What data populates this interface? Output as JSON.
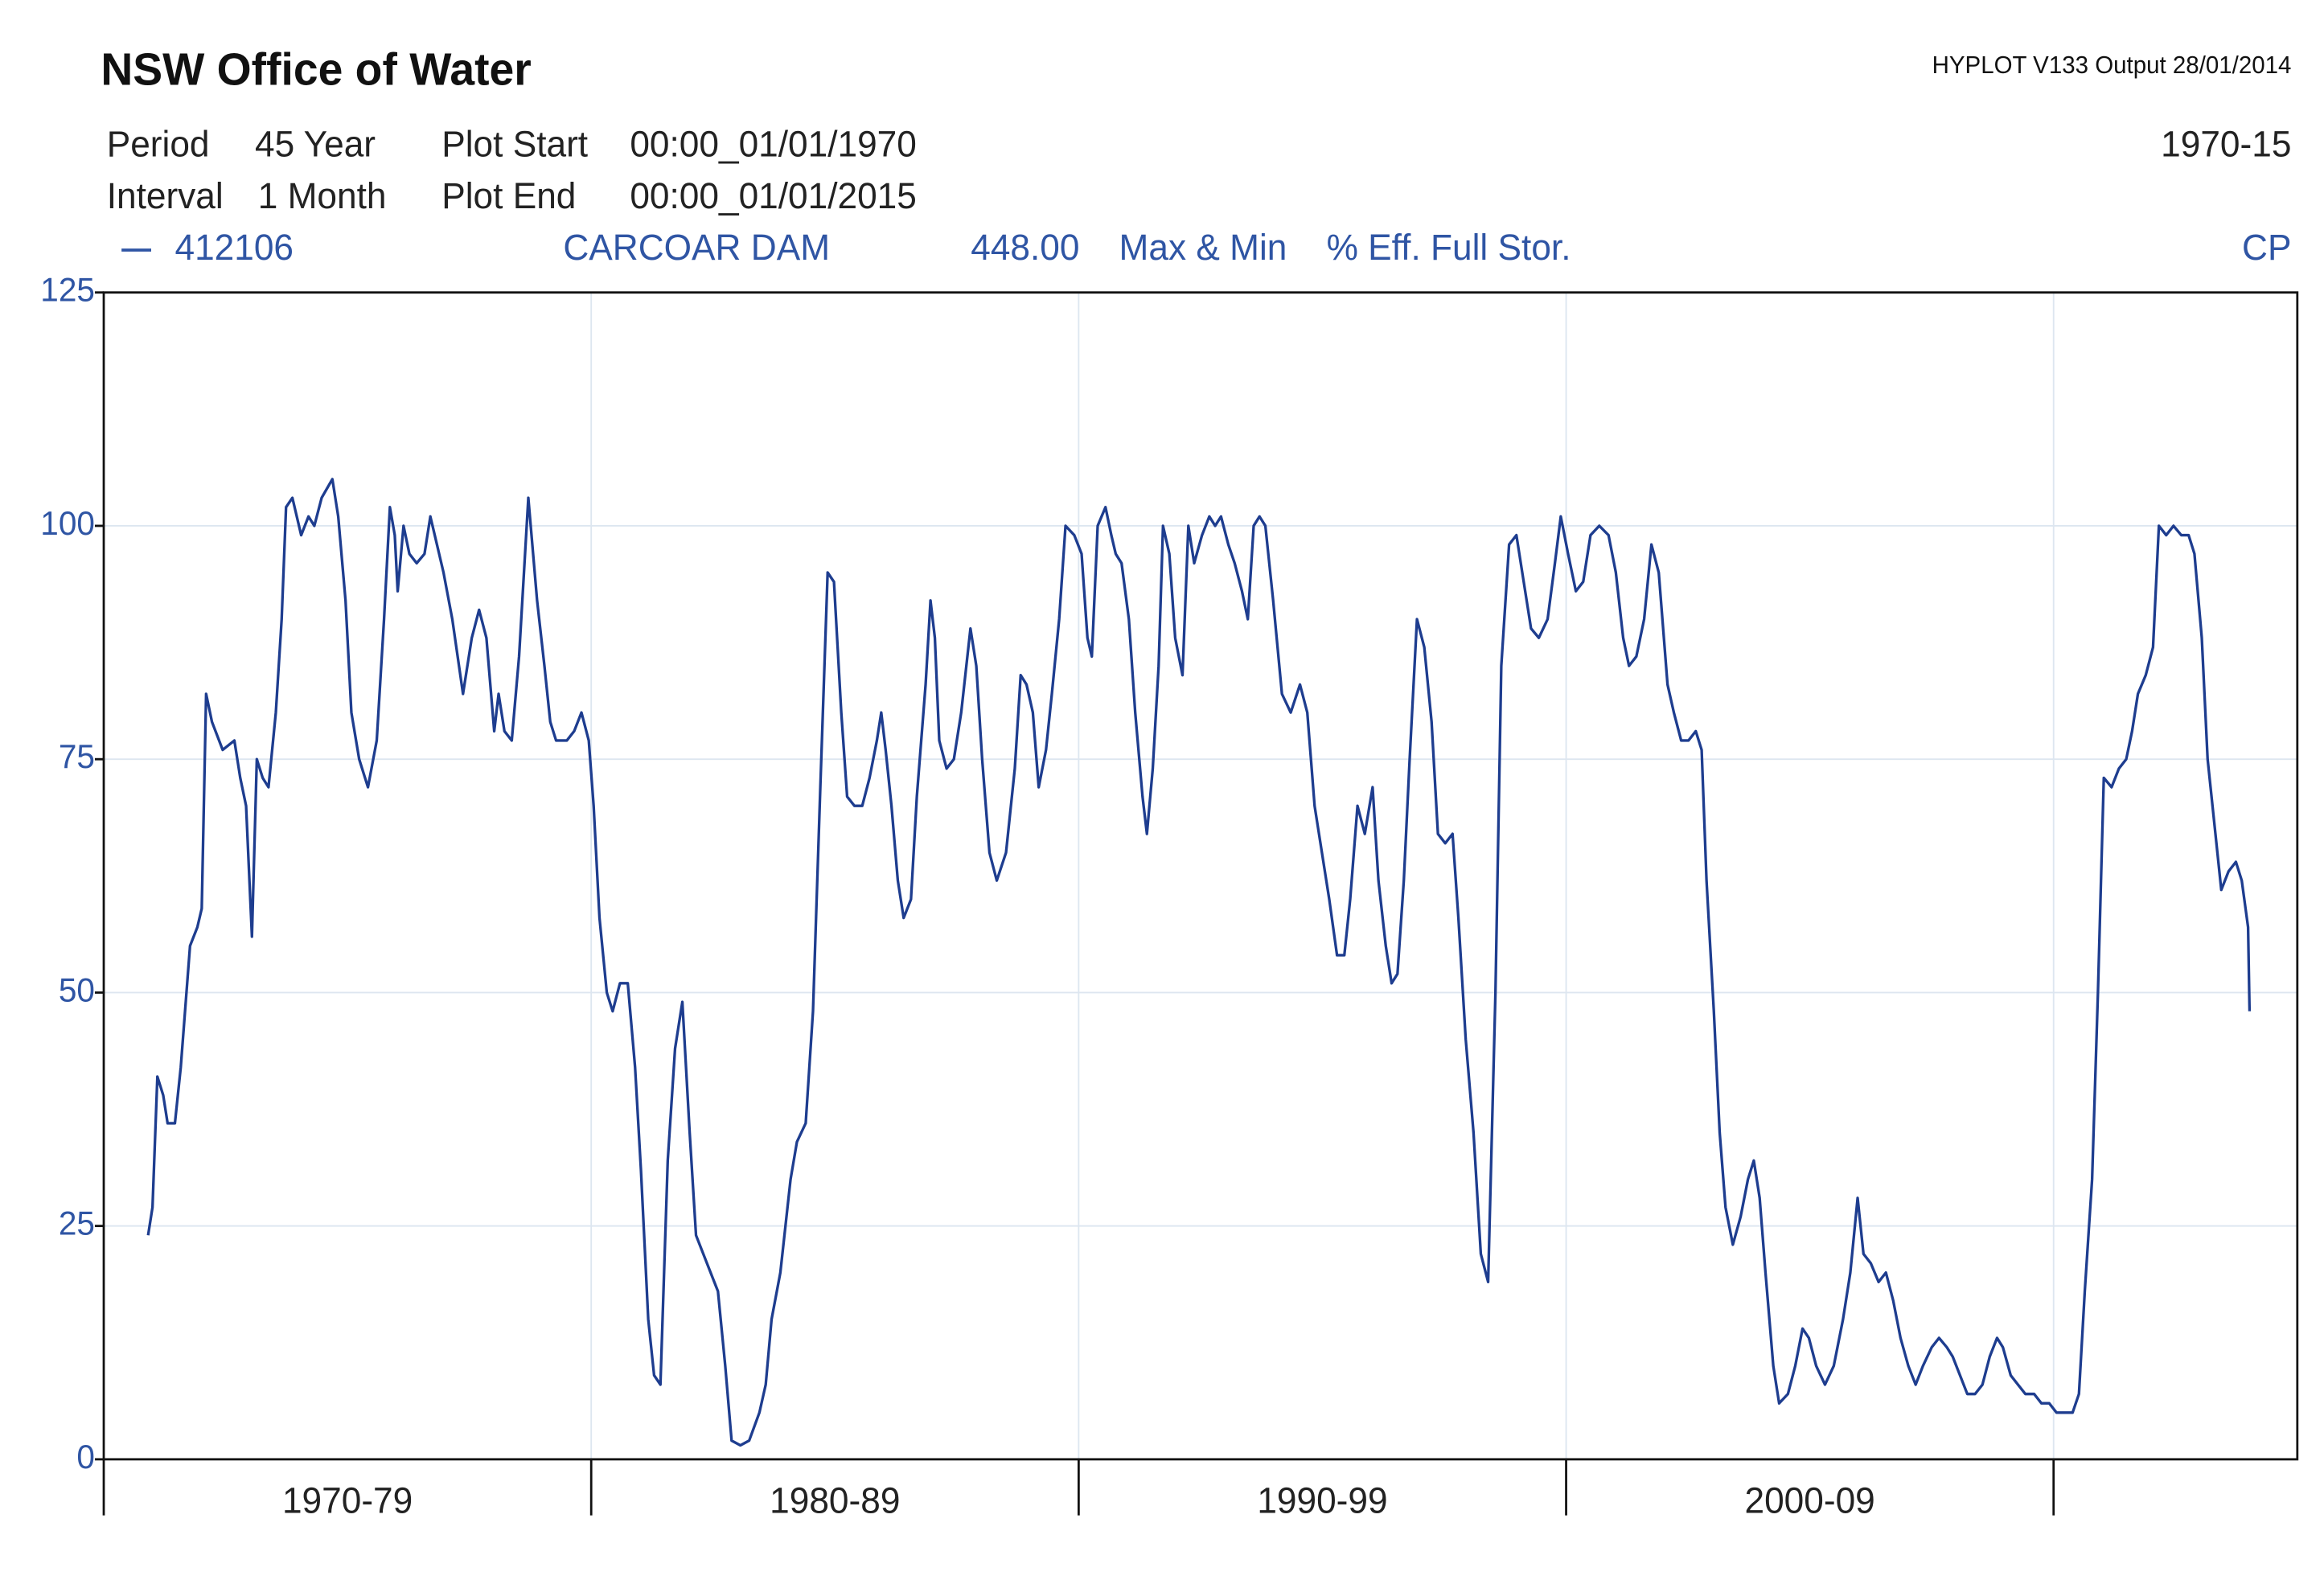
{
  "chart_data": {
    "type": "line",
    "title": "NSW Office of Water",
    "software": "HYPLOT V133  Output 28/01/2014",
    "period_label": "Period",
    "period": "45 Year",
    "interval_label": "Interval",
    "interval": "1 Month",
    "plot_start_label": "Plot Start",
    "plot_start": "00:00_01/01/1970",
    "plot_end_label": "Plot End",
    "plot_end": "00:00_01/01/2015",
    "range_label": "1970-15",
    "site_name": "CARCOAR DAM",
    "variable_code": "448.00",
    "statistic": "Max & Min",
    "variable_name": "% Eff. Full Stor.",
    "quality_code": "CP",
    "xlim": [
      1970,
      2015
    ],
    "ylim": [
      0,
      125
    ],
    "yticks": [
      0,
      25,
      50,
      75,
      100,
      125
    ],
    "xticks": [
      {
        "value": 1970,
        "label": "1970-79"
      },
      {
        "value": 1980,
        "label": "1980-89"
      },
      {
        "value": 1990,
        "label": "1990-99"
      },
      {
        "value": 2000,
        "label": "2000-09"
      },
      {
        "value": 2010,
        "label": null
      }
    ],
    "grid": true,
    "x": [
      1970.91,
      1971.0,
      1971.1,
      1971.22,
      1971.31,
      1971.46,
      1971.58,
      1971.77,
      1971.92,
      1972.01,
      1972.1,
      1972.22,
      1972.44,
      1972.68,
      1972.8,
      1972.92,
      1973.04,
      1973.14,
      1973.26,
      1973.38,
      1973.53,
      1973.65,
      1973.74,
      1973.87,
      1974.05,
      1974.2,
      1974.32,
      1974.47,
      1974.69,
      1974.81,
      1974.96,
      1975.08,
      1975.24,
      1975.42,
      1975.6,
      1975.75,
      1975.87,
      1975.97,
      1976.03,
      1976.15,
      1976.27,
      1976.42,
      1976.58,
      1976.7,
      1976.79,
      1976.97,
      1977.15,
      1977.37,
      1977.55,
      1977.7,
      1977.85,
      1978.01,
      1978.1,
      1978.22,
      1978.37,
      1978.52,
      1978.71,
      1978.89,
      1979.04,
      1979.16,
      1979.28,
      1979.5,
      1979.65,
      1979.8,
      1979.95,
      1980.05,
      1980.17,
      1980.32,
      1980.44,
      1980.59,
      1980.75,
      1980.9,
      1981.02,
      1981.17,
      1981.29,
      1981.42,
      1981.57,
      1981.72,
      1981.87,
      1982.02,
      1982.15,
      1982.3,
      1982.45,
      1982.6,
      1982.75,
      1982.88,
      1983.06,
      1983.24,
      1983.45,
      1983.58,
      1983.7,
      1983.88,
      1984.09,
      1984.22,
      1984.4,
      1984.55,
      1984.7,
      1984.85,
      1984.98,
      1985.13,
      1985.25,
      1985.4,
      1985.56,
      1985.71,
      1985.86,
      1985.95,
      1986.04,
      1986.16,
      1986.29,
      1986.41,
      1986.56,
      1986.68,
      1986.86,
      1986.96,
      1987.05,
      1987.14,
      1987.29,
      1987.44,
      1987.59,
      1987.78,
      1987.9,
      1988.02,
      1988.17,
      1988.32,
      1988.51,
      1988.69,
      1988.81,
      1988.93,
      1989.06,
      1989.18,
      1989.33,
      1989.45,
      1989.6,
      1989.73,
      1989.91,
      1990.06,
      1990.18,
      1990.27,
      1990.39,
      1990.55,
      1990.67,
      1990.76,
      1990.88,
      1991.03,
      1991.16,
      1991.31,
      1991.4,
      1991.52,
      1991.64,
      1991.73,
      1991.86,
      1991.98,
      1992.13,
      1992.25,
      1992.37,
      1992.53,
      1992.68,
      1992.8,
      1992.92,
      1993.07,
      1993.2,
      1993.35,
      1993.47,
      1993.59,
      1993.71,
      1993.83,
      1993.99,
      1994.17,
      1994.35,
      1994.54,
      1994.69,
      1994.84,
      1994.99,
      1995.14,
      1995.3,
      1995.45,
      1995.57,
      1995.72,
      1995.87,
      1996.03,
      1996.15,
      1996.3,
      1996.42,
      1996.54,
      1996.67,
      1996.79,
      1996.94,
      1997.09,
      1997.24,
      1997.37,
      1997.52,
      1997.67,
      1997.79,
      1997.94,
      1998.1,
      1998.25,
      1998.4,
      1998.55,
      1998.67,
      1998.83,
      1998.98,
      1999.13,
      1999.28,
      1999.44,
      1999.62,
      1999.77,
      1999.89,
      2000.04,
      2000.2,
      2000.35,
      2000.5,
      2000.68,
      2000.87,
      2001.02,
      2001.17,
      2001.29,
      2001.44,
      2001.6,
      2001.75,
      2001.9,
      2002.08,
      2002.21,
      2002.36,
      2002.51,
      2002.66,
      2002.78,
      2002.88,
      2003.03,
      2003.15,
      2003.27,
      2003.42,
      2003.58,
      2003.73,
      2003.85,
      2003.97,
      2004.09,
      2004.25,
      2004.37,
      2004.55,
      2004.7,
      2004.85,
      2004.98,
      2005.13,
      2005.31,
      2005.49,
      2005.68,
      2005.83,
      2005.98,
      2006.1,
      2006.25,
      2006.41,
      2006.56,
      2006.71,
      2006.86,
      2007.02,
      2007.17,
      2007.32,
      2007.5,
      2007.65,
      2007.81,
      2007.93,
      2008.08,
      2008.23,
      2008.39,
      2008.54,
      2008.69,
      2008.84,
      2008.96,
      2009.12,
      2009.27,
      2009.42,
      2009.6,
      2009.75,
      2009.91,
      2010.06,
      2010.24,
      2010.39,
      2010.52,
      2010.64,
      2010.79,
      2010.91,
      2011.03,
      2011.19,
      2011.34,
      2011.49,
      2011.61,
      2011.73,
      2011.89,
      2012.04,
      2012.16,
      2012.31,
      2012.46,
      2012.62,
      2012.77,
      2012.89,
      2013.04,
      2013.16,
      2013.32,
      2013.44,
      2013.59,
      2013.74,
      2013.86,
      2013.99,
      2014.02
    ],
    "series": [
      {
        "name": "412106",
        "color": "#1e3d8f",
        "values": [
          24,
          27,
          41,
          39,
          36,
          36,
          42,
          55,
          57,
          59,
          82,
          79,
          76,
          77,
          73,
          70,
          56,
          75,
          73,
          72,
          80,
          90,
          102,
          103,
          99,
          101,
          100,
          103,
          105,
          101,
          92,
          80,
          75,
          72,
          77,
          90,
          102,
          99,
          93,
          100,
          97,
          96,
          97,
          101,
          99,
          95,
          90,
          82,
          88,
          91,
          88,
          78,
          82,
          78,
          77,
          86,
          103,
          92,
          85,
          79,
          77,
          77,
          78,
          80,
          77,
          70,
          58,
          50,
          48,
          51,
          51,
          42,
          31,
          15,
          9,
          8,
          32,
          44,
          49,
          35,
          24,
          22,
          20,
          18,
          10,
          2,
          1.5,
          2,
          5,
          8,
          15,
          20,
          30,
          34,
          36,
          48,
          72,
          95,
          94,
          80,
          71,
          70,
          70,
          73,
          77,
          80,
          76,
          70,
          62,
          58,
          60,
          71,
          83,
          92,
          88,
          77,
          74,
          75,
          80,
          89,
          85,
          75,
          65,
          62,
          65,
          74,
          84,
          83,
          80,
          72,
          76,
          82,
          90,
          100,
          99,
          97,
          88,
          86,
          100,
          102,
          99,
          97,
          96,
          90,
          80,
          71,
          67,
          74,
          85,
          100,
          97,
          88,
          84,
          100,
          96,
          99,
          101,
          100,
          101,
          98,
          96,
          93,
          90,
          100,
          101,
          100,
          92,
          82,
          80,
          83,
          80,
          70,
          65,
          60,
          54,
          54,
          60,
          70,
          67,
          72,
          62,
          55,
          51,
          52,
          62,
          75,
          90,
          87,
          79,
          67,
          66,
          67,
          58,
          45,
          35,
          22,
          19,
          50,
          85,
          98,
          99,
          94,
          89,
          88,
          90,
          96,
          101,
          97,
          93,
          94,
          99,
          100,
          99,
          95,
          88,
          85,
          86,
          90,
          98,
          95,
          83,
          80,
          77,
          77,
          78,
          76,
          62,
          48,
          35,
          27,
          23,
          26,
          30,
          32,
          28,
          20,
          10,
          6,
          7,
          10,
          14,
          13,
          10,
          8,
          10,
          15,
          20,
          28,
          22,
          21,
          19,
          20,
          17,
          13,
          10,
          8,
          10,
          12,
          13,
          12,
          11,
          9,
          7,
          7,
          8,
          11,
          13,
          12,
          9,
          8,
          7,
          7,
          6,
          6,
          5,
          5,
          5,
          7,
          18,
          30,
          50,
          73,
          72,
          74,
          75,
          78,
          82,
          84,
          87,
          100,
          99,
          100,
          99,
          99,
          97,
          88,
          75,
          67,
          61,
          63,
          64,
          62,
          57,
          48
        ]
      }
    ]
  }
}
